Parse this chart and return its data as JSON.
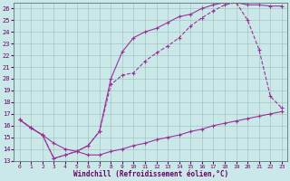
{
  "xlabel": "Windchill (Refroidissement éolien,°C)",
  "bg_color": "#cbe8e8",
  "line_color": "#993399",
  "xlim": [
    -0.5,
    23.5
  ],
  "ylim": [
    13,
    26.5
  ],
  "xticks": [
    0,
    1,
    2,
    3,
    4,
    5,
    6,
    7,
    8,
    9,
    10,
    11,
    12,
    13,
    14,
    15,
    16,
    17,
    18,
    19,
    20,
    21,
    22,
    23
  ],
  "yticks": [
    13,
    14,
    15,
    16,
    17,
    18,
    19,
    20,
    21,
    22,
    23,
    24,
    25,
    26
  ],
  "line1_x": [
    0,
    1,
    2,
    3,
    4,
    5,
    6,
    7,
    8,
    9,
    10,
    11,
    12,
    13,
    14,
    15,
    16,
    17,
    18,
    19,
    20,
    21,
    22,
    23
  ],
  "line1_y": [
    16.5,
    15.8,
    15.2,
    14.5,
    14.0,
    13.8,
    13.5,
    13.5,
    13.8,
    14.0,
    14.3,
    14.5,
    14.8,
    15.0,
    15.2,
    15.5,
    15.7,
    16.0,
    16.2,
    16.4,
    16.6,
    16.8,
    17.0,
    17.2
  ],
  "line2_x": [
    0,
    1,
    2,
    3,
    4,
    5,
    6,
    7,
    8,
    9,
    10,
    11,
    12,
    13,
    14,
    15,
    16,
    17,
    18,
    19,
    20,
    21,
    22,
    23
  ],
  "line2_y": [
    16.5,
    15.8,
    15.2,
    13.2,
    13.5,
    13.8,
    14.3,
    15.5,
    19.5,
    20.3,
    20.5,
    21.5,
    22.2,
    22.8,
    23.5,
    24.5,
    25.2,
    25.8,
    26.3,
    26.5,
    25.0,
    22.5,
    18.5,
    17.5
  ],
  "line3_x": [
    0,
    1,
    2,
    3,
    4,
    5,
    6,
    7,
    8,
    9,
    10,
    11,
    12,
    13,
    14,
    15,
    16,
    17,
    18,
    19,
    20,
    21,
    22,
    23
  ],
  "line3_y": [
    16.5,
    15.8,
    15.2,
    13.2,
    13.5,
    13.8,
    14.3,
    15.5,
    20.0,
    22.3,
    23.5,
    24.0,
    24.3,
    24.8,
    25.3,
    25.5,
    26.0,
    26.3,
    26.5,
    26.5,
    26.3,
    26.3,
    26.2,
    26.2
  ]
}
